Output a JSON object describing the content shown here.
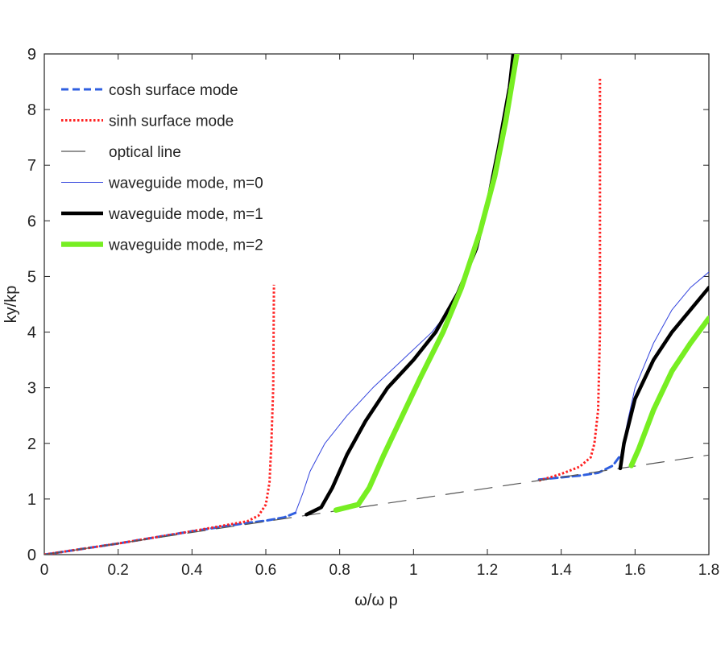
{
  "chart_data": {
    "type": "line",
    "title": "",
    "xlabel": "ω/ω p",
    "ylabel": "ky/kp",
    "xlim": [
      0,
      1.8
    ],
    "ylim": [
      0,
      9
    ],
    "xticks": [
      "0",
      "0.2",
      "0.4",
      "0.6",
      "0.8",
      "1",
      "1.2",
      "1.4",
      "1.6",
      "1.8"
    ],
    "yticks": [
      "0",
      "1",
      "2",
      "3",
      "4",
      "5",
      "6",
      "7",
      "8",
      "9"
    ],
    "grid": false,
    "legend_position": "top-left",
    "series": [
      {
        "name": "cosh surface mode",
        "color": "#2f5fe0",
        "style": "dashed",
        "segments": [
          [
            [
              0,
              0
            ],
            [
              0.2,
              0.2
            ],
            [
              0.4,
              0.42
            ],
            [
              0.55,
              0.57
            ],
            [
              0.6,
              0.61
            ],
            [
              0.65,
              0.67
            ],
            [
              0.68,
              0.75
            ]
          ],
          [
            [
              1.34,
              1.35
            ],
            [
              1.45,
              1.42
            ],
            [
              1.5,
              1.47
            ],
            [
              1.54,
              1.6
            ],
            [
              1.56,
              1.78
            ]
          ]
        ]
      },
      {
        "name": "sinh surface mode",
        "color": "#ff2020",
        "style": "dotted",
        "segments": [
          [
            [
              0,
              0
            ],
            [
              0.2,
              0.2
            ],
            [
              0.4,
              0.42
            ],
            [
              0.55,
              0.6
            ],
            [
              0.58,
              0.7
            ],
            [
              0.6,
              0.9
            ],
            [
              0.61,
              1.3
            ],
            [
              0.615,
              2
            ],
            [
              0.62,
              3
            ],
            [
              0.622,
              4.85
            ]
          ],
          [
            [
              1.34,
              1.33
            ],
            [
              1.4,
              1.45
            ],
            [
              1.45,
              1.58
            ],
            [
              1.48,
              1.75
            ],
            [
              1.49,
              2
            ],
            [
              1.5,
              2.6
            ],
            [
              1.505,
              4
            ],
            [
              1.505,
              8.57
            ]
          ]
        ]
      },
      {
        "name": "optical line",
        "color": "#555555",
        "style": "longdash",
        "segments": [
          [
            [
              0,
              0
            ],
            [
              1.8,
              1.79
            ]
          ]
        ]
      },
      {
        "name": "waveguide mode, m=0",
        "color": "#3344dd",
        "style": "thin",
        "segments": [
          [
            [
              0.68,
              0.75
            ],
            [
              0.7,
              1.1
            ],
            [
              0.72,
              1.5
            ],
            [
              0.76,
              2
            ],
            [
              0.82,
              2.5
            ],
            [
              0.89,
              3
            ],
            [
              0.97,
              3.5
            ],
            [
              1.05,
              4
            ],
            [
              1.11,
              4.5
            ],
            [
              1.14,
              5
            ],
            [
              1.18,
              5.7
            ],
            [
              1.21,
              6.5
            ],
            [
              1.24,
              7.3
            ],
            [
              1.26,
              8.2
            ],
            [
              1.27,
              9
            ]
          ],
          [
            [
              1.56,
              1.75
            ],
            [
              1.58,
              2.4
            ],
            [
              1.6,
              3
            ],
            [
              1.65,
              3.8
            ],
            [
              1.7,
              4.4
            ],
            [
              1.75,
              4.8
            ],
            [
              1.8,
              5.08
            ]
          ]
        ]
      },
      {
        "name": "waveguide mode, m=1",
        "color": "#000000",
        "style": "thick",
        "segments": [
          [
            [
              0.71,
              0.72
            ],
            [
              0.75,
              0.85
            ],
            [
              0.78,
              1.2
            ],
            [
              0.82,
              1.8
            ],
            [
              0.87,
              2.4
            ],
            [
              0.93,
              3
            ],
            [
              1.0,
              3.5
            ],
            [
              1.06,
              4
            ],
            [
              1.12,
              4.7
            ],
            [
              1.17,
              5.5
            ],
            [
              1.2,
              6.3
            ],
            [
              1.23,
              7.3
            ],
            [
              1.26,
              8.4
            ],
            [
              1.27,
              9
            ]
          ],
          [
            [
              1.56,
              1.55
            ],
            [
              1.57,
              2
            ],
            [
              1.6,
              2.8
            ],
            [
              1.65,
              3.5
            ],
            [
              1.7,
              4
            ],
            [
              1.75,
              4.4
            ],
            [
              1.8,
              4.8
            ]
          ]
        ]
      },
      {
        "name": "waveguide mode, m=2",
        "color": "#77ee22",
        "style": "thicker",
        "segments": [
          [
            [
              0.79,
              0.8
            ],
            [
              0.85,
              0.9
            ],
            [
              0.88,
              1.2
            ],
            [
              0.92,
              1.8
            ],
            [
              0.97,
              2.5
            ],
            [
              1.02,
              3.2
            ],
            [
              1.08,
              4
            ],
            [
              1.13,
              4.8
            ],
            [
              1.18,
              5.8
            ],
            [
              1.22,
              6.8
            ],
            [
              1.25,
              7.8
            ],
            [
              1.28,
              9
            ]
          ],
          [
            [
              1.59,
              1.6
            ],
            [
              1.61,
              1.9
            ],
            [
              1.65,
              2.6
            ],
            [
              1.7,
              3.3
            ],
            [
              1.75,
              3.8
            ],
            [
              1.8,
              4.25
            ]
          ]
        ]
      }
    ]
  }
}
